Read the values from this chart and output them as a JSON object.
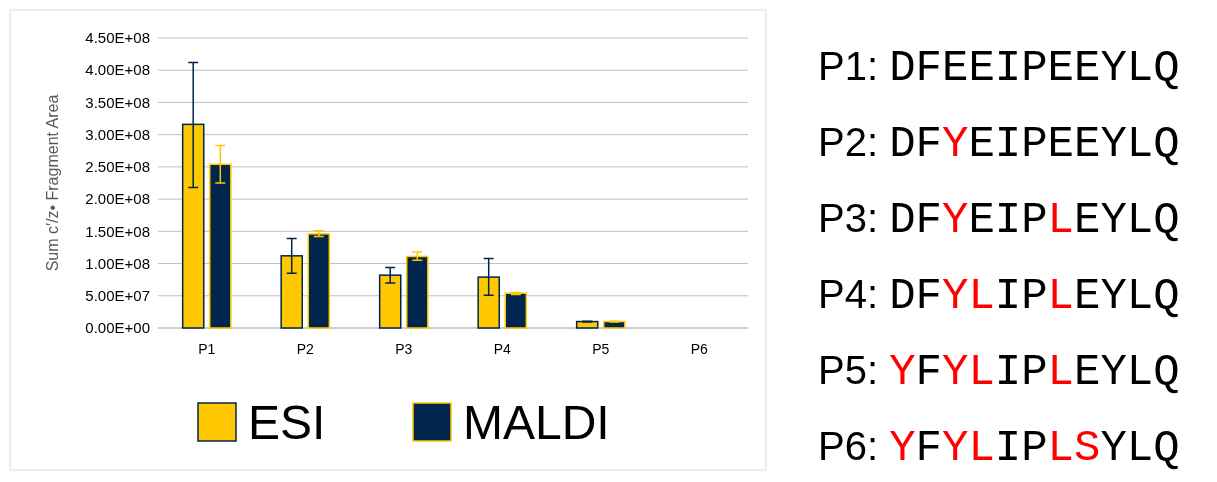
{
  "chart_data": [
    {
      "type": "bar",
      "ylabel": "Sum c′/z• Fragment Area",
      "categories": [
        "P1",
        "P2",
        "P3",
        "P4",
        "P5",
        "P6"
      ],
      "series": [
        {
          "name": "ESI",
          "color": "#ffc800",
          "values": [
            316000000,
            112000000,
            82000000,
            79000000,
            10000000,
            null
          ],
          "errors": [
            [
              218000000,
              412000000
            ],
            [
              85000000,
              139000000
            ],
            [
              70000000,
              94000000
            ],
            [
              51000000,
              108000000
            ],
            [
              9500000,
              10500000
            ],
            null
          ]
        },
        {
          "name": "MALDI",
          "color": "#00264d",
          "values": [
            254000000,
            146000000,
            111000000,
            54000000,
            10000000,
            null
          ],
          "errors": [
            [
              225000000,
              283000000
            ],
            [
              142000000,
              151000000
            ],
            [
              105000000,
              118000000
            ],
            [
              52000000,
              55000000
            ],
            [
              9500000,
              10500000
            ],
            null
          ]
        }
      ],
      "ylim": [
        0,
        450000000
      ],
      "yticks": [
        {
          "value": 0,
          "label": "0.00E+00"
        },
        {
          "value": 50000000,
          "label": "5.00E+07"
        },
        {
          "value": 100000000,
          "label": "1.00E+08"
        },
        {
          "value": 150000000,
          "label": "1.50E+08"
        },
        {
          "value": 200000000,
          "label": "2.00E+08"
        },
        {
          "value": 250000000,
          "label": "2.50E+08"
        },
        {
          "value": 300000000,
          "label": "3.00E+08"
        },
        {
          "value": 350000000,
          "label": "3.50E+08"
        },
        {
          "value": 400000000,
          "label": "4.00E+08"
        },
        {
          "value": 450000000,
          "label": "4.50E+08"
        }
      ],
      "grid": "y",
      "legend": "bottom"
    },
    {
      "type": "other",
      "annotations": [
        "P1: DFEEIPEEYLQ",
        "P2: DFYEIPEEYLQ",
        "P3: DFYEIPLEYLQ",
        "P4: DFYLIPLEYLQ",
        "P5: YFYLIPLEYLQ",
        "P6: YFYLIPLSYLQ"
      ]
    }
  ]
}
